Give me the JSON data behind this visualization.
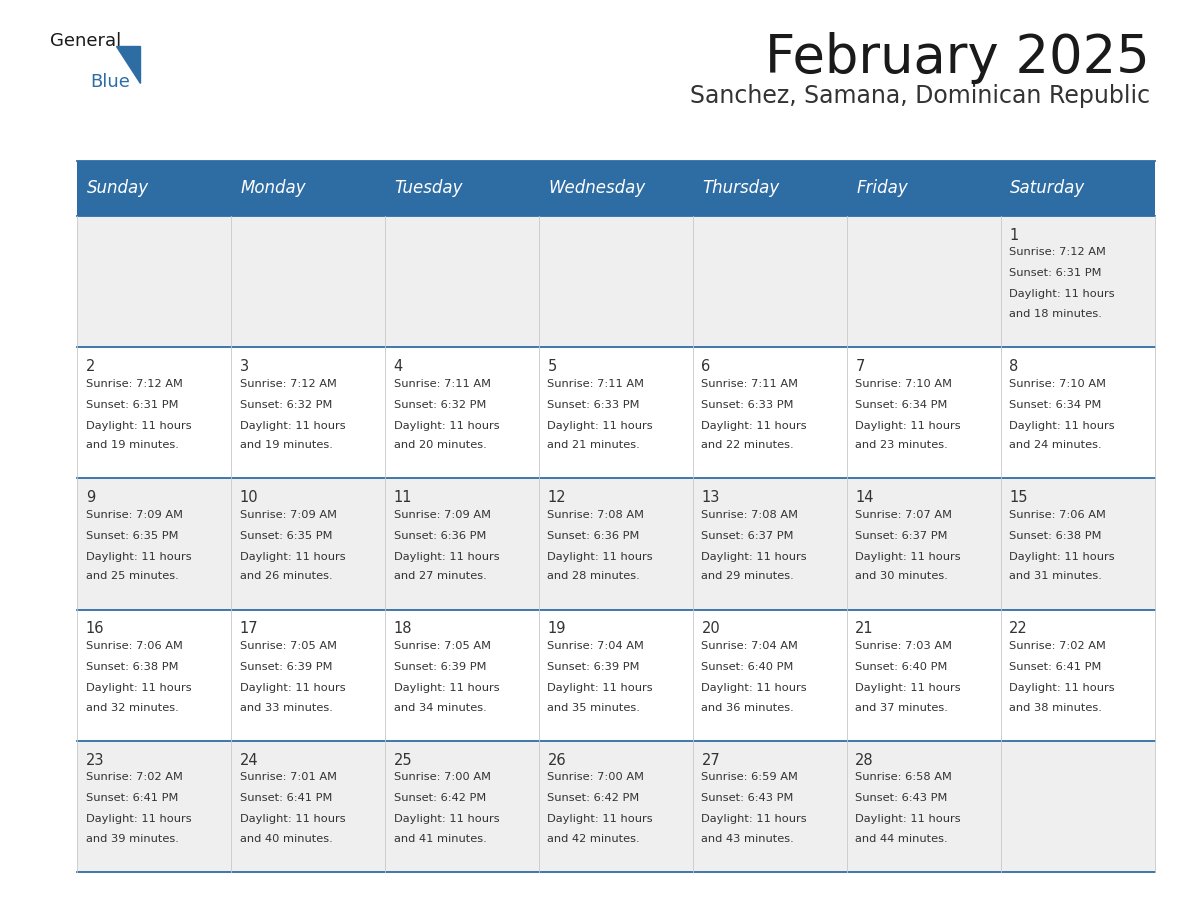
{
  "title": "February 2025",
  "subtitle": "Sanchez, Samana, Dominican Republic",
  "header_bg": "#2E6DA4",
  "header_text_color": "#FFFFFF",
  "cell_bg_gray": "#EFEFEF",
  "cell_bg_white": "#FFFFFF",
  "border_color": "#2E6DA4",
  "day_headers": [
    "Sunday",
    "Monday",
    "Tuesday",
    "Wednesday",
    "Thursday",
    "Friday",
    "Saturday"
  ],
  "days": [
    {
      "day": 1,
      "col": 6,
      "row": 0,
      "sunrise": "7:12 AM",
      "sunset": "6:31 PM",
      "daylight": "11 hours and 18 minutes."
    },
    {
      "day": 2,
      "col": 0,
      "row": 1,
      "sunrise": "7:12 AM",
      "sunset": "6:31 PM",
      "daylight": "11 hours and 19 minutes."
    },
    {
      "day": 3,
      "col": 1,
      "row": 1,
      "sunrise": "7:12 AM",
      "sunset": "6:32 PM",
      "daylight": "11 hours and 19 minutes."
    },
    {
      "day": 4,
      "col": 2,
      "row": 1,
      "sunrise": "7:11 AM",
      "sunset": "6:32 PM",
      "daylight": "11 hours and 20 minutes."
    },
    {
      "day": 5,
      "col": 3,
      "row": 1,
      "sunrise": "7:11 AM",
      "sunset": "6:33 PM",
      "daylight": "11 hours and 21 minutes."
    },
    {
      "day": 6,
      "col": 4,
      "row": 1,
      "sunrise": "7:11 AM",
      "sunset": "6:33 PM",
      "daylight": "11 hours and 22 minutes."
    },
    {
      "day": 7,
      "col": 5,
      "row": 1,
      "sunrise": "7:10 AM",
      "sunset": "6:34 PM",
      "daylight": "11 hours and 23 minutes."
    },
    {
      "day": 8,
      "col": 6,
      "row": 1,
      "sunrise": "7:10 AM",
      "sunset": "6:34 PM",
      "daylight": "11 hours and 24 minutes."
    },
    {
      "day": 9,
      "col": 0,
      "row": 2,
      "sunrise": "7:09 AM",
      "sunset": "6:35 PM",
      "daylight": "11 hours and 25 minutes."
    },
    {
      "day": 10,
      "col": 1,
      "row": 2,
      "sunrise": "7:09 AM",
      "sunset": "6:35 PM",
      "daylight": "11 hours and 26 minutes."
    },
    {
      "day": 11,
      "col": 2,
      "row": 2,
      "sunrise": "7:09 AM",
      "sunset": "6:36 PM",
      "daylight": "11 hours and 27 minutes."
    },
    {
      "day": 12,
      "col": 3,
      "row": 2,
      "sunrise": "7:08 AM",
      "sunset": "6:36 PM",
      "daylight": "11 hours and 28 minutes."
    },
    {
      "day": 13,
      "col": 4,
      "row": 2,
      "sunrise": "7:08 AM",
      "sunset": "6:37 PM",
      "daylight": "11 hours and 29 minutes."
    },
    {
      "day": 14,
      "col": 5,
      "row": 2,
      "sunrise": "7:07 AM",
      "sunset": "6:37 PM",
      "daylight": "11 hours and 30 minutes."
    },
    {
      "day": 15,
      "col": 6,
      "row": 2,
      "sunrise": "7:06 AM",
      "sunset": "6:38 PM",
      "daylight": "11 hours and 31 minutes."
    },
    {
      "day": 16,
      "col": 0,
      "row": 3,
      "sunrise": "7:06 AM",
      "sunset": "6:38 PM",
      "daylight": "11 hours and 32 minutes."
    },
    {
      "day": 17,
      "col": 1,
      "row": 3,
      "sunrise": "7:05 AM",
      "sunset": "6:39 PM",
      "daylight": "11 hours and 33 minutes."
    },
    {
      "day": 18,
      "col": 2,
      "row": 3,
      "sunrise": "7:05 AM",
      "sunset": "6:39 PM",
      "daylight": "11 hours and 34 minutes."
    },
    {
      "day": 19,
      "col": 3,
      "row": 3,
      "sunrise": "7:04 AM",
      "sunset": "6:39 PM",
      "daylight": "11 hours and 35 minutes."
    },
    {
      "day": 20,
      "col": 4,
      "row": 3,
      "sunrise": "7:04 AM",
      "sunset": "6:40 PM",
      "daylight": "11 hours and 36 minutes."
    },
    {
      "day": 21,
      "col": 5,
      "row": 3,
      "sunrise": "7:03 AM",
      "sunset": "6:40 PM",
      "daylight": "11 hours and 37 minutes."
    },
    {
      "day": 22,
      "col": 6,
      "row": 3,
      "sunrise": "7:02 AM",
      "sunset": "6:41 PM",
      "daylight": "11 hours and 38 minutes."
    },
    {
      "day": 23,
      "col": 0,
      "row": 4,
      "sunrise": "7:02 AM",
      "sunset": "6:41 PM",
      "daylight": "11 hours and 39 minutes."
    },
    {
      "day": 24,
      "col": 1,
      "row": 4,
      "sunrise": "7:01 AM",
      "sunset": "6:41 PM",
      "daylight": "11 hours and 40 minutes."
    },
    {
      "day": 25,
      "col": 2,
      "row": 4,
      "sunrise": "7:00 AM",
      "sunset": "6:42 PM",
      "daylight": "11 hours and 41 minutes."
    },
    {
      "day": 26,
      "col": 3,
      "row": 4,
      "sunrise": "7:00 AM",
      "sunset": "6:42 PM",
      "daylight": "11 hours and 42 minutes."
    },
    {
      "day": 27,
      "col": 4,
      "row": 4,
      "sunrise": "6:59 AM",
      "sunset": "6:43 PM",
      "daylight": "11 hours and 43 minutes."
    },
    {
      "day": 28,
      "col": 5,
      "row": 4,
      "sunrise": "6:58 AM",
      "sunset": "6:43 PM",
      "daylight": "11 hours and 44 minutes."
    }
  ],
  "num_rows": 5,
  "title_fontsize": 38,
  "subtitle_fontsize": 17,
  "header_fontsize": 12,
  "day_num_fontsize": 10.5,
  "cell_text_fontsize": 8.2
}
